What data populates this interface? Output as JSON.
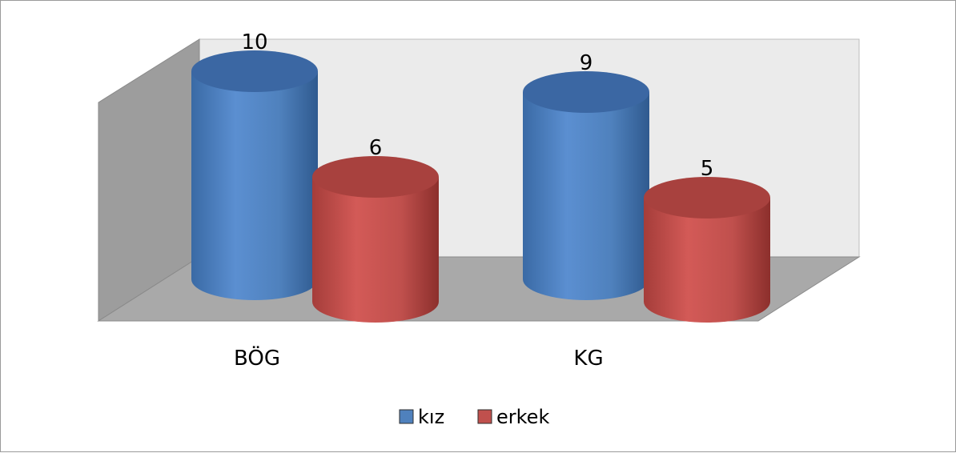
{
  "chart_data": {
    "type": "bar",
    "style": "3d-cylinder",
    "title": "",
    "xlabel": "",
    "ylabel": "",
    "categories": [
      "BÖG",
      "KG"
    ],
    "series": [
      {
        "name": "kız",
        "values": [
          10,
          9
        ],
        "color": "#4f81bd"
      },
      {
        "name": "erkek",
        "values": [
          6,
          5
        ],
        "color": "#c0504d"
      }
    ],
    "ylim": [
      0,
      10
    ],
    "data_labels": true,
    "grid": false,
    "legend_position": "bottom"
  }
}
